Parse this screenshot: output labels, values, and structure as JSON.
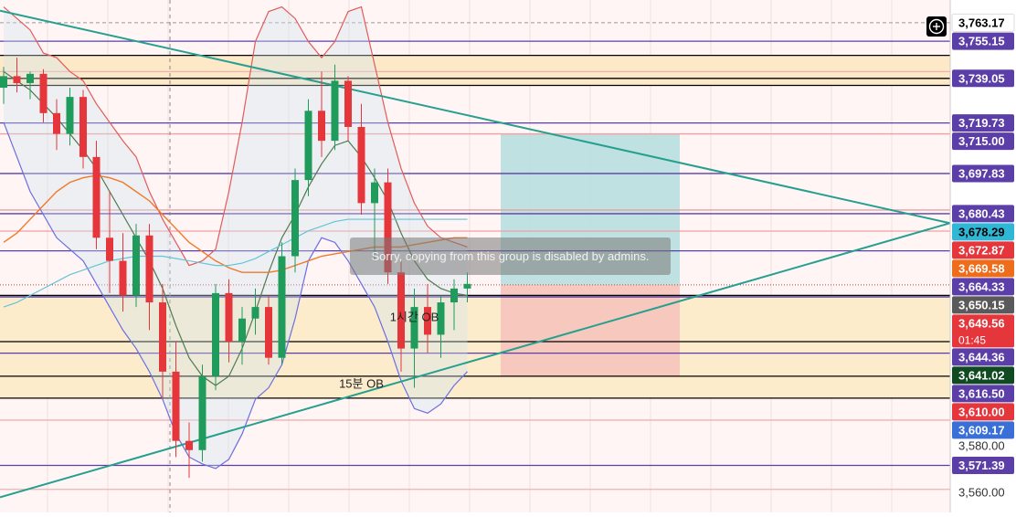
{
  "toast": {
    "text": "Sorry, copying from this group is disabled by admins."
  },
  "chart_data": {
    "type": "candlestick",
    "title": "",
    "ylim": [
      3551,
      3773
    ],
    "y_ticks": [
      3580.0,
      3560.0
    ],
    "price_labels": [
      {
        "value": 3763.17,
        "text": "3,763.17",
        "bg": "#ffffff",
        "fg": "#000000"
      },
      {
        "value": 3755.15,
        "text": "3,755.15",
        "bg": "#5b3ea8",
        "fg": "#ffffff"
      },
      {
        "value": 3739.05,
        "text": "3,739.05",
        "bg": "#5b3ea8",
        "fg": "#ffffff"
      },
      {
        "value": 3719.73,
        "text": "3,719.73",
        "bg": "#5b3ea8",
        "fg": "#ffffff"
      },
      {
        "value": 3715.0,
        "text": "3,715.00",
        "bg": "#5b3ea8",
        "fg": "#ffffff"
      },
      {
        "value": 3697.83,
        "text": "3,697.83",
        "bg": "#5b3ea8",
        "fg": "#ffffff"
      },
      {
        "value": 3680.43,
        "text": "3,680.43",
        "bg": "#5b3ea8",
        "fg": "#ffffff"
      },
      {
        "value": 3678.29,
        "text": "3,678.29",
        "bg": "#2fb8d6",
        "fg": "#000000"
      },
      {
        "value": 3672.87,
        "text": "3,672.87",
        "bg": "#e5363b",
        "fg": "#ffffff"
      },
      {
        "value": 3669.58,
        "text": "3,669.58",
        "bg": "#ef6c1a",
        "fg": "#ffffff"
      },
      {
        "value": 3664.33,
        "text": "3,664.33",
        "bg": "#5b3ea8",
        "fg": "#ffffff"
      },
      {
        "value": 3650.15,
        "text": "3,650.15",
        "bg": "#5a5a5a",
        "fg": "#ffffff"
      },
      {
        "value": 3649.56,
        "text": "3,649.56",
        "bg": "#e5363b",
        "fg": "#ffffff",
        "sub": "01:45"
      },
      {
        "value": 3644.36,
        "text": "3,644.36",
        "bg": "#5b3ea8",
        "fg": "#ffffff"
      },
      {
        "value": 3641.02,
        "text": "3,641.02",
        "bg": "#0f4a20",
        "fg": "#ffffff"
      },
      {
        "value": 3616.5,
        "text": "3,616.50",
        "bg": "#5b3ea8",
        "fg": "#ffffff"
      },
      {
        "value": 3610.0,
        "text": "3,610.00",
        "bg": "#e5363b",
        "fg": "#ffffff"
      },
      {
        "value": 3609.17,
        "text": "3,609.17",
        "bg": "#3a6fd8",
        "fg": "#ffffff"
      },
      {
        "value": 3571.39,
        "text": "3,571.39",
        "bg": "#5b3ea8",
        "fg": "#ffffff"
      }
    ],
    "horizontal_levels": [
      {
        "value": 3755.15,
        "color": "#5b3ea8"
      },
      {
        "value": 3749,
        "color": "#000000"
      },
      {
        "value": 3742,
        "color": "#f0b0b0"
      },
      {
        "value": 3739.05,
        "color": "#000000"
      },
      {
        "value": 3736,
        "color": "#000000"
      },
      {
        "value": 3719.73,
        "color": "#5b3ea8"
      },
      {
        "value": 3715.0,
        "color": "#f0a0a0"
      },
      {
        "value": 3697.83,
        "color": "#5b3ea8"
      },
      {
        "value": 3682,
        "color": "#e8a0a0"
      },
      {
        "value": 3680.43,
        "color": "#5b3ea8"
      },
      {
        "value": 3672.87,
        "color": "#f0a0a0"
      },
      {
        "value": 3664.33,
        "color": "#5b3ea8"
      },
      {
        "value": 3645,
        "color": "#000000"
      },
      {
        "value": 3644.36,
        "color": "#5b3ea8"
      },
      {
        "value": 3625,
        "color": "#000000"
      },
      {
        "value": 3620,
        "color": "#5b3ea8"
      },
      {
        "value": 3610.0,
        "color": "#000000"
      },
      {
        "value": 3600.5,
        "color": "#000000"
      },
      {
        "value": 3591,
        "color": "#f0b0b0"
      },
      {
        "value": 3571.39,
        "color": "#5b3ea8"
      },
      {
        "value": 3561,
        "color": "#f0b0b0"
      }
    ],
    "zones": [
      {
        "from": 3736,
        "to": 3749,
        "color": "#fde8c8"
      },
      {
        "from": 3600.5,
        "to": 3645,
        "color": "#fdeccc"
      }
    ],
    "annotations": [
      {
        "text": "15분 OB",
        "price": 3605,
        "bar": 27
      },
      {
        "text": "1시간 OB",
        "price": 3634,
        "bar": 31
      }
    ],
    "position_tool": {
      "profit_top": 3715.0,
      "entry": 3649.56,
      "stop": 3610.0,
      "profit_color": "#b9dfdf",
      "loss_color": "#f6c4bb"
    },
    "trendlines": [
      {
        "x0_bar": 0,
        "p0": 3768,
        "x1_bar": 67,
        "p1": 3682,
        "color": "#25a08f"
      },
      {
        "x0_bar": 0,
        "p0": 3558,
        "x1_bar": 67,
        "p1": 3669,
        "color": "#25a08f"
      }
    ],
    "candles": [
      {
        "o": 3735,
        "h": 3744,
        "l": 3728,
        "c": 3740
      },
      {
        "o": 3740,
        "h": 3748,
        "l": 3733,
        "c": 3737
      },
      {
        "o": 3737,
        "h": 3742,
        "l": 3730,
        "c": 3741
      },
      {
        "o": 3741,
        "h": 3743,
        "l": 3720,
        "c": 3724
      },
      {
        "o": 3724,
        "h": 3730,
        "l": 3708,
        "c": 3715
      },
      {
        "o": 3715,
        "h": 3735,
        "l": 3710,
        "c": 3731
      },
      {
        "o": 3731,
        "h": 3734,
        "l": 3700,
        "c": 3705
      },
      {
        "o": 3705,
        "h": 3712,
        "l": 3665,
        "c": 3670
      },
      {
        "o": 3670,
        "h": 3690,
        "l": 3646,
        "c": 3660
      },
      {
        "o": 3660,
        "h": 3672,
        "l": 3638,
        "c": 3645
      },
      {
        "o": 3645,
        "h": 3676,
        "l": 3640,
        "c": 3671
      },
      {
        "o": 3671,
        "h": 3676,
        "l": 3630,
        "c": 3642
      },
      {
        "o": 3642,
        "h": 3650,
        "l": 3600,
        "c": 3612
      },
      {
        "o": 3612,
        "h": 3625,
        "l": 3575,
        "c": 3582
      },
      {
        "o": 3582,
        "h": 3590,
        "l": 3566,
        "c": 3578
      },
      {
        "o": 3578,
        "h": 3615,
        "l": 3573,
        "c": 3610
      },
      {
        "o": 3610,
        "h": 3650,
        "l": 3604,
        "c": 3646
      },
      {
        "o": 3646,
        "h": 3652,
        "l": 3616,
        "c": 3625
      },
      {
        "o": 3625,
        "h": 3640,
        "l": 3615,
        "c": 3635
      },
      {
        "o": 3635,
        "h": 3648,
        "l": 3628,
        "c": 3640
      },
      {
        "o": 3640,
        "h": 3645,
        "l": 3615,
        "c": 3618
      },
      {
        "o": 3618,
        "h": 3668,
        "l": 3615,
        "c": 3662
      },
      {
        "o": 3662,
        "h": 3700,
        "l": 3655,
        "c": 3695
      },
      {
        "o": 3695,
        "h": 3730,
        "l": 3688,
        "c": 3725
      },
      {
        "o": 3725,
        "h": 3742,
        "l": 3705,
        "c": 3712
      },
      {
        "o": 3712,
        "h": 3745,
        "l": 3708,
        "c": 3738
      },
      {
        "o": 3738,
        "h": 3740,
        "l": 3712,
        "c": 3718
      },
      {
        "o": 3718,
        "h": 3728,
        "l": 3680,
        "c": 3685
      },
      {
        "o": 3685,
        "h": 3700,
        "l": 3660,
        "c": 3694
      },
      {
        "o": 3694,
        "h": 3700,
        "l": 3650,
        "c": 3655
      },
      {
        "o": 3655,
        "h": 3660,
        "l": 3612,
        "c": 3622
      },
      {
        "o": 3622,
        "h": 3648,
        "l": 3605,
        "c": 3640
      },
      {
        "o": 3640,
        "h": 3650,
        "l": 3620,
        "c": 3628
      },
      {
        "o": 3628,
        "h": 3645,
        "l": 3618,
        "c": 3642
      },
      {
        "o": 3642,
        "h": 3652,
        "l": 3630,
        "c": 3648
      },
      {
        "o": 3648,
        "h": 3655,
        "l": 3642,
        "c": 3650
      }
    ],
    "bands": {
      "upper": [
        3770,
        3765,
        3760,
        3750,
        3748,
        3742,
        3738,
        3728,
        3720,
        3712,
        3705,
        3690,
        3678,
        3668,
        3658,
        3660,
        3665,
        3690,
        3720,
        3755,
        3768,
        3770,
        3765,
        3755,
        3748,
        3755,
        3768,
        3770,
        3745,
        3720,
        3700,
        3685,
        3675,
        3670,
        3668,
        3666
      ],
      "lower": [
        3720,
        3705,
        3690,
        3680,
        3670,
        3665,
        3660,
        3650,
        3640,
        3630,
        3622,
        3612,
        3600,
        3585,
        3575,
        3572,
        3570,
        3574,
        3585,
        3600,
        3605,
        3615,
        3635,
        3660,
        3670,
        3668,
        3660,
        3650,
        3640,
        3625,
        3608,
        3596,
        3594,
        3598,
        3606,
        3612
      ],
      "ma_green": [
        3742,
        3738,
        3734,
        3728,
        3722,
        3715,
        3708,
        3700,
        3690,
        3680,
        3670,
        3660,
        3648,
        3632,
        3618,
        3610,
        3606,
        3610,
        3622,
        3638,
        3655,
        3670,
        3680,
        3692,
        3702,
        3710,
        3712,
        3705,
        3696,
        3686,
        3672,
        3660,
        3652,
        3648,
        3646,
        3645
      ],
      "ma_orange": [
        3668,
        3672,
        3678,
        3684,
        3690,
        3694,
        3696,
        3697,
        3696,
        3694,
        3690,
        3686,
        3680,
        3674,
        3668,
        3664,
        3660,
        3657,
        3655,
        3655,
        3655,
        3656,
        3658,
        3660,
        3662,
        3663,
        3664,
        3665,
        3666,
        3666,
        3666,
        3667,
        3668,
        3669,
        3670,
        3670
      ],
      "ma_cyan": [
        3640,
        3642,
        3645,
        3648,
        3651,
        3654,
        3656,
        3658,
        3660,
        3661,
        3662,
        3662,
        3662,
        3661,
        3660,
        3659,
        3658,
        3658,
        3659,
        3661,
        3664,
        3667,
        3670,
        3673,
        3675,
        3677,
        3678,
        3678,
        3678,
        3678,
        3678,
        3678,
        3678,
        3678,
        3678,
        3678
      ]
    }
  }
}
